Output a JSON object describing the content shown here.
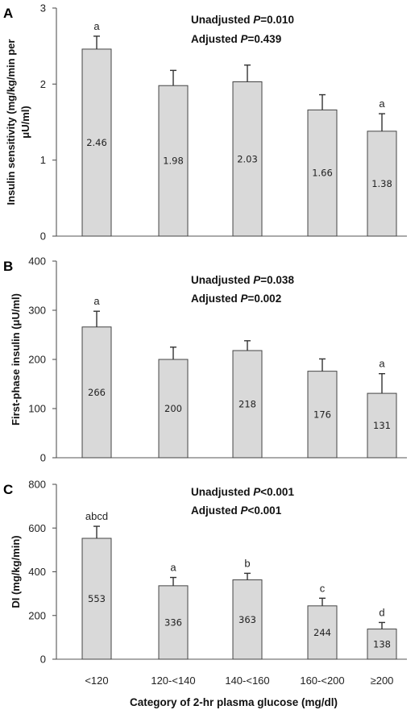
{
  "x_axis_title": "Category of 2-hr plasma glucose (mg/dl)",
  "categories": [
    "<120",
    "120-<140",
    "140-<160",
    "160-<200",
    "≥200"
  ],
  "colors": {
    "bar_fill": "#d9d9d9",
    "bar_stroke": "#444444",
    "axis": "#555555"
  },
  "chart_data": [
    {
      "type": "bar",
      "panel": "A",
      "ylabel_lines": [
        "Insulin sensitivity (mg/kg/min per",
        "μU/ml)"
      ],
      "ylim": [
        0,
        3
      ],
      "yticks": [
        0,
        1,
        2,
        3
      ],
      "categories": [
        "<120",
        "120-<140",
        "140-<160",
        "160-<200",
        "≥200"
      ],
      "values": [
        2.46,
        1.98,
        2.03,
        1.66,
        1.38
      ],
      "value_labels": [
        "2.46",
        "1.98",
        "2.03",
        "1.66",
        "1.38"
      ],
      "error_upper": [
        0.17,
        0.2,
        0.22,
        0.2,
        0.23
      ],
      "significance": [
        "a",
        "",
        "",
        "",
        "a"
      ],
      "stats": [
        {
          "label": "Unadjusted ",
          "italic": "P",
          "value": "=0.010"
        },
        {
          "label": "Adjusted ",
          "italic": "P",
          "value": "=0.439"
        }
      ],
      "grid": false,
      "xlabel": ""
    },
    {
      "type": "bar",
      "panel": "B",
      "ylabel_lines": [
        "First-phase insulin (μU/ml)"
      ],
      "ylim": [
        0,
        400
      ],
      "yticks": [
        0,
        100,
        200,
        300,
        400
      ],
      "categories": [
        "<120",
        "120-<140",
        "140-<160",
        "160-<200",
        "≥200"
      ],
      "values": [
        266,
        200,
        218,
        176,
        131
      ],
      "value_labels": [
        "266",
        "200",
        "218",
        "176",
        "131"
      ],
      "error_upper": [
        32,
        25,
        20,
        25,
        40
      ],
      "significance": [
        "a",
        "",
        "",
        "",
        "a"
      ],
      "stats": [
        {
          "label": "Unadjusted ",
          "italic": "P",
          "value": "=0.038"
        },
        {
          "label": "Adjusted ",
          "italic": "P",
          "value": "=0.002"
        }
      ],
      "grid": false,
      "xlabel": ""
    },
    {
      "type": "bar",
      "panel": "C",
      "ylabel_lines": [
        "DI (mg/kg/min)"
      ],
      "ylim": [
        0,
        800
      ],
      "yticks": [
        0,
        200,
        400,
        600,
        800
      ],
      "categories": [
        "<120",
        "120-<140",
        "140-<160",
        "160-<200",
        "≥200"
      ],
      "values": [
        553,
        336,
        363,
        244,
        138
      ],
      "value_labels": [
        "553",
        "336",
        "363",
        "244",
        "138"
      ],
      "error_upper": [
        55,
        38,
        30,
        35,
        30
      ],
      "significance": [
        "abcd",
        "a",
        "b",
        "c",
        "d"
      ],
      "stats": [
        {
          "label": "Unadjusted ",
          "italic": "P",
          "value": "<0.001"
        },
        {
          "label": "Adjusted ",
          "italic": "P",
          "value": "<0.001"
        }
      ],
      "grid": false,
      "xlabel": "Category of 2-hr plasma glucose (mg/dl)"
    }
  ]
}
